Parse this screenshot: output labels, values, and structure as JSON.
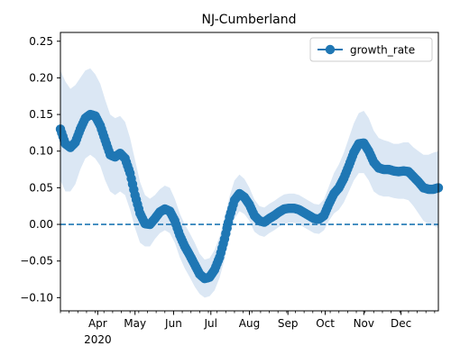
{
  "chart_data": {
    "type": "line",
    "title": "NJ-Cumberland",
    "xlabel": "",
    "ylabel": "",
    "x_axis": {
      "range": [
        "2020-03-02",
        "2020-12-31"
      ],
      "month_ticks": [
        {
          "date": "2020-04-01",
          "label": "Apr"
        },
        {
          "date": "2020-05-01",
          "label": "May"
        },
        {
          "date": "2020-06-01",
          "label": "Jun"
        },
        {
          "date": "2020-07-01",
          "label": "Jul"
        },
        {
          "date": "2020-08-01",
          "label": "Aug"
        },
        {
          "date": "2020-09-01",
          "label": "Sep"
        },
        {
          "date": "2020-10-01",
          "label": "Oct"
        },
        {
          "date": "2020-11-01",
          "label": "Nov"
        },
        {
          "date": "2020-12-01",
          "label": "Dec"
        }
      ],
      "year_label": "2020"
    },
    "y_axis": {
      "range": [
        -0.118,
        0.262
      ],
      "ticks": [
        -0.1,
        -0.05,
        0.0,
        0.05,
        0.1,
        0.15,
        0.2,
        0.25
      ],
      "tick_labels": [
        "−0.10",
        "−0.05",
        "0.00",
        "0.05",
        "0.10",
        "0.15",
        "0.20",
        "0.25"
      ]
    },
    "legend": {
      "position": "top-right"
    },
    "reference_line": {
      "y": 0.0,
      "style": "dashed",
      "color": "#1f77b4"
    },
    "series": [
      {
        "name": "growth_rate",
        "color": "#1f77b4",
        "band_color": "#dbe7f4",
        "points": [
          {
            "x": "2020-03-02",
            "y": 0.13,
            "lo": 0.06,
            "hi": 0.21
          },
          {
            "x": "2020-03-06",
            "y": 0.11,
            "lo": 0.045,
            "hi": 0.195
          },
          {
            "x": "2020-03-10",
            "y": 0.105,
            "lo": 0.045,
            "hi": 0.185
          },
          {
            "x": "2020-03-14",
            "y": 0.112,
            "lo": 0.055,
            "hi": 0.19
          },
          {
            "x": "2020-03-18",
            "y": 0.13,
            "lo": 0.075,
            "hi": 0.2
          },
          {
            "x": "2020-03-22",
            "y": 0.145,
            "lo": 0.09,
            "hi": 0.21
          },
          {
            "x": "2020-03-26",
            "y": 0.15,
            "lo": 0.095,
            "hi": 0.213
          },
          {
            "x": "2020-03-30",
            "y": 0.148,
            "lo": 0.09,
            "hi": 0.205
          },
          {
            "x": "2020-04-03",
            "y": 0.135,
            "lo": 0.08,
            "hi": 0.192
          },
          {
            "x": "2020-04-07",
            "y": 0.115,
            "lo": 0.06,
            "hi": 0.17
          },
          {
            "x": "2020-04-11",
            "y": 0.095,
            "lo": 0.045,
            "hi": 0.15
          },
          {
            "x": "2020-04-15",
            "y": 0.092,
            "lo": 0.04,
            "hi": 0.145
          },
          {
            "x": "2020-04-19",
            "y": 0.097,
            "lo": 0.045,
            "hi": 0.148
          },
          {
            "x": "2020-04-23",
            "y": 0.09,
            "lo": 0.04,
            "hi": 0.14
          },
          {
            "x": "2020-04-27",
            "y": 0.07,
            "lo": 0.02,
            "hi": 0.118
          },
          {
            "x": "2020-05-01",
            "y": 0.04,
            "lo": -0.005,
            "hi": 0.088
          },
          {
            "x": "2020-05-05",
            "y": 0.015,
            "lo": -0.025,
            "hi": 0.058
          },
          {
            "x": "2020-05-09",
            "y": 0.001,
            "lo": -0.03,
            "hi": 0.04
          },
          {
            "x": "2020-05-13",
            "y": 0.0,
            "lo": -0.03,
            "hi": 0.035
          },
          {
            "x": "2020-05-17",
            "y": 0.008,
            "lo": -0.02,
            "hi": 0.04
          },
          {
            "x": "2020-05-21",
            "y": 0.017,
            "lo": -0.012,
            "hi": 0.048
          },
          {
            "x": "2020-05-25",
            "y": 0.021,
            "lo": -0.008,
            "hi": 0.053
          },
          {
            "x": "2020-05-29",
            "y": 0.018,
            "lo": -0.012,
            "hi": 0.05
          },
          {
            "x": "2020-06-02",
            "y": 0.005,
            "lo": -0.025,
            "hi": 0.035
          },
          {
            "x": "2020-06-06",
            "y": -0.015,
            "lo": -0.045,
            "hi": 0.015
          },
          {
            "x": "2020-06-10",
            "y": -0.03,
            "lo": -0.06,
            "hi": 0.0
          },
          {
            "x": "2020-06-14",
            "y": -0.042,
            "lo": -0.072,
            "hi": -0.012
          },
          {
            "x": "2020-06-18",
            "y": -0.055,
            "lo": -0.085,
            "hi": -0.025
          },
          {
            "x": "2020-06-22",
            "y": -0.068,
            "lo": -0.095,
            "hi": -0.04
          },
          {
            "x": "2020-06-26",
            "y": -0.074,
            "lo": -0.1,
            "hi": -0.048
          },
          {
            "x": "2020-06-30",
            "y": -0.072,
            "lo": -0.098,
            "hi": -0.046
          },
          {
            "x": "2020-07-04",
            "y": -0.062,
            "lo": -0.09,
            "hi": -0.035
          },
          {
            "x": "2020-07-08",
            "y": -0.045,
            "lo": -0.073,
            "hi": -0.017
          },
          {
            "x": "2020-07-12",
            "y": -0.02,
            "lo": -0.048,
            "hi": 0.008
          },
          {
            "x": "2020-07-16",
            "y": 0.01,
            "lo": -0.018,
            "hi": 0.038
          },
          {
            "x": "2020-07-20",
            "y": 0.033,
            "lo": 0.008,
            "hi": 0.06
          },
          {
            "x": "2020-07-24",
            "y": 0.042,
            "lo": 0.018,
            "hi": 0.068
          },
          {
            "x": "2020-07-28",
            "y": 0.037,
            "lo": 0.014,
            "hi": 0.062
          },
          {
            "x": "2020-08-01",
            "y": 0.027,
            "lo": 0.005,
            "hi": 0.05
          },
          {
            "x": "2020-08-05",
            "y": 0.012,
            "lo": -0.01,
            "hi": 0.034
          },
          {
            "x": "2020-08-09",
            "y": 0.005,
            "lo": -0.015,
            "hi": 0.025
          },
          {
            "x": "2020-08-13",
            "y": 0.003,
            "lo": -0.017,
            "hi": 0.023
          },
          {
            "x": "2020-08-17",
            "y": 0.008,
            "lo": -0.012,
            "hi": 0.028
          },
          {
            "x": "2020-08-21",
            "y": 0.012,
            "lo": -0.008,
            "hi": 0.032
          },
          {
            "x": "2020-08-25",
            "y": 0.017,
            "lo": -0.003,
            "hi": 0.037
          },
          {
            "x": "2020-08-29",
            "y": 0.021,
            "lo": 0.001,
            "hi": 0.041
          },
          {
            "x": "2020-09-02",
            "y": 0.022,
            "lo": 0.002,
            "hi": 0.042
          },
          {
            "x": "2020-09-06",
            "y": 0.022,
            "lo": 0.002,
            "hi": 0.042
          },
          {
            "x": "2020-09-10",
            "y": 0.02,
            "lo": 0.0,
            "hi": 0.04
          },
          {
            "x": "2020-09-14",
            "y": 0.016,
            "lo": -0.004,
            "hi": 0.036
          },
          {
            "x": "2020-09-18",
            "y": 0.012,
            "lo": -0.008,
            "hi": 0.032
          },
          {
            "x": "2020-09-22",
            "y": 0.008,
            "lo": -0.012,
            "hi": 0.028
          },
          {
            "x": "2020-09-26",
            "y": 0.007,
            "lo": -0.013,
            "hi": 0.027
          },
          {
            "x": "2020-09-30",
            "y": 0.012,
            "lo": -0.008,
            "hi": 0.034
          },
          {
            "x": "2020-10-04",
            "y": 0.028,
            "lo": 0.005,
            "hi": 0.052
          },
          {
            "x": "2020-10-08",
            "y": 0.042,
            "lo": 0.015,
            "hi": 0.07
          },
          {
            "x": "2020-10-12",
            "y": 0.05,
            "lo": 0.02,
            "hi": 0.082
          },
          {
            "x": "2020-10-16",
            "y": 0.063,
            "lo": 0.03,
            "hi": 0.098
          },
          {
            "x": "2020-10-20",
            "y": 0.08,
            "lo": 0.045,
            "hi": 0.118
          },
          {
            "x": "2020-10-24",
            "y": 0.098,
            "lo": 0.06,
            "hi": 0.138
          },
          {
            "x": "2020-10-28",
            "y": 0.11,
            "lo": 0.07,
            "hi": 0.152
          },
          {
            "x": "2020-11-01",
            "y": 0.111,
            "lo": 0.07,
            "hi": 0.155
          },
          {
            "x": "2020-11-05",
            "y": 0.1,
            "lo": 0.06,
            "hi": 0.145
          },
          {
            "x": "2020-11-09",
            "y": 0.085,
            "lo": 0.045,
            "hi": 0.128
          },
          {
            "x": "2020-11-13",
            "y": 0.077,
            "lo": 0.04,
            "hi": 0.118
          },
          {
            "x": "2020-11-17",
            "y": 0.075,
            "lo": 0.038,
            "hi": 0.115
          },
          {
            "x": "2020-11-21",
            "y": 0.075,
            "lo": 0.038,
            "hi": 0.113
          },
          {
            "x": "2020-11-25",
            "y": 0.073,
            "lo": 0.036,
            "hi": 0.11
          },
          {
            "x": "2020-11-29",
            "y": 0.072,
            "lo": 0.035,
            "hi": 0.11
          },
          {
            "x": "2020-12-03",
            "y": 0.073,
            "lo": 0.035,
            "hi": 0.112
          },
          {
            "x": "2020-12-07",
            "y": 0.072,
            "lo": 0.033,
            "hi": 0.112
          },
          {
            "x": "2020-12-11",
            "y": 0.065,
            "lo": 0.025,
            "hi": 0.105
          },
          {
            "x": "2020-12-15",
            "y": 0.058,
            "lo": 0.015,
            "hi": 0.1
          },
          {
            "x": "2020-12-19",
            "y": 0.05,
            "lo": 0.005,
            "hi": 0.095
          },
          {
            "x": "2020-12-23",
            "y": 0.048,
            "lo": 0.0,
            "hi": 0.095
          },
          {
            "x": "2020-12-27",
            "y": 0.048,
            "lo": -0.002,
            "hi": 0.098
          },
          {
            "x": "2020-12-31",
            "y": 0.05,
            "lo": -0.005,
            "hi": 0.1
          }
        ]
      }
    ]
  }
}
